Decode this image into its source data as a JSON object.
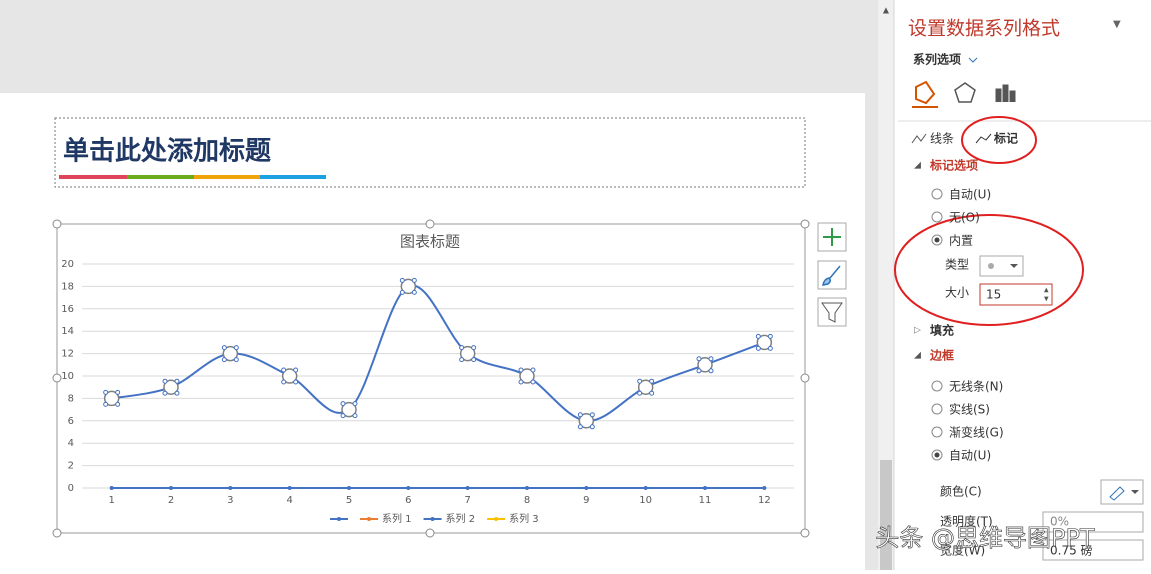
{
  "slide": {
    "title_placeholder": "单击此处添加标题"
  },
  "chart_data": {
    "type": "line",
    "title": "图表标题",
    "categories": [
      "1",
      "2",
      "3",
      "4",
      "5",
      "6",
      "7",
      "8",
      "9",
      "10",
      "11",
      "12"
    ],
    "ylim": [
      0,
      20
    ],
    "yticks": [
      0,
      2,
      4,
      6,
      8,
      10,
      12,
      14,
      16,
      18,
      20
    ],
    "grid": true,
    "series": [
      {
        "name": null,
        "color": "#4472c4",
        "values": [
          0,
          0,
          0,
          0,
          0,
          0,
          0,
          0,
          0,
          0,
          0,
          0
        ]
      },
      {
        "name": "系列 1",
        "color": "#ed7d31",
        "values": [
          null,
          null,
          null,
          null,
          null,
          null,
          null,
          null,
          null,
          null,
          null,
          null
        ]
      },
      {
        "name": "系列 2",
        "color": "#4472c4",
        "values": [
          8,
          9,
          12,
          10,
          7,
          18,
          12,
          10,
          6,
          9,
          11,
          13
        ]
      },
      {
        "name": "系列 3",
        "color": "#ffc000",
        "values": [
          null,
          null,
          null,
          null,
          null,
          null,
          null,
          null,
          null,
          null,
          null,
          null
        ]
      }
    ]
  },
  "panel": {
    "title": "设置数据系列格式",
    "subtitle": "系列选项",
    "tabs": [
      "线条",
      "标记"
    ],
    "marker_options": {
      "heading": "标记选项",
      "options": [
        "自动(U)",
        "无(O)",
        "内置"
      ],
      "type_label": "类型",
      "size_label": "大小",
      "size": 15
    },
    "fill": "填充",
    "border": {
      "heading": "边框",
      "options": [
        "无线条(N)",
        "实线(S)",
        "渐变线(G)",
        "自动(U)"
      ],
      "color_label": "颜色(C)",
      "transparency_label": "透明度(T)",
      "transparency": "0%",
      "width_label": "宽度(W)",
      "width": "0.75 磅"
    }
  },
  "watermark": "头条 @思维导图PPT"
}
